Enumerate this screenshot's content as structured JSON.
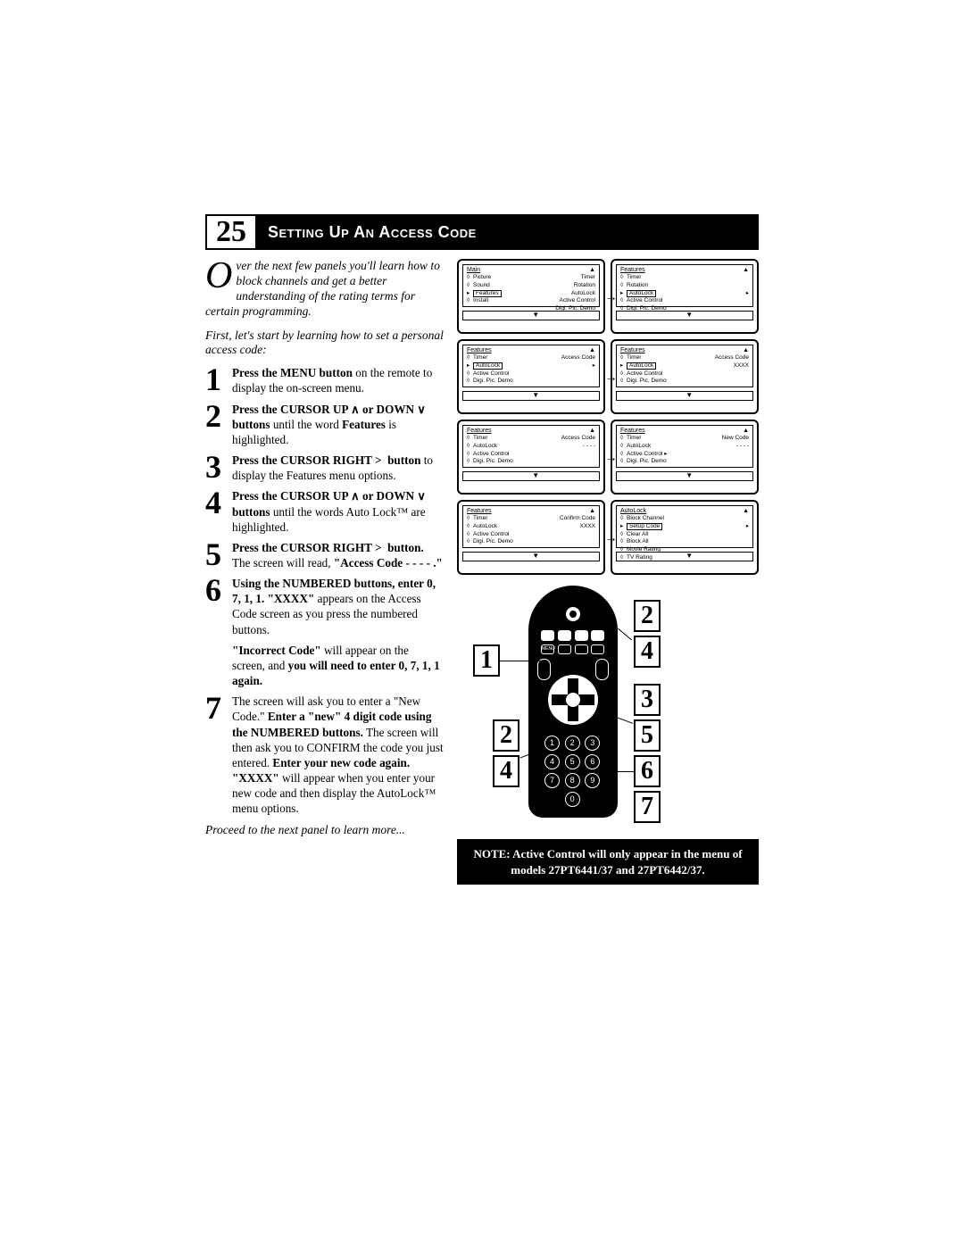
{
  "page_number": "25",
  "title": "Setting Up An Access Code",
  "intro_lead": "O",
  "intro": "ver the next few panels you'll learn how to block channels and get a better understanding of the rating terms for certain programming.",
  "intro2": "First, let's start by learning how to set a personal access code:",
  "steps": [
    {
      "n": "1",
      "html": "<b>Press the MENU button</b> on the remote to display the on-screen menu."
    },
    {
      "n": "2",
      "html": "<b>Press the CURSOR UP ∧ or DOWN ∨ buttons</b> until the word <b>Features</b> is highlighted."
    },
    {
      "n": "3",
      "html": "<b>Press the CURSOR RIGHT > &nbsp;button</b> to display the Features menu options."
    },
    {
      "n": "4",
      "html": "<b>Press the CURSOR UP ∧ or DOWN ∨ buttons</b> until the words Auto Lock™ are highlighted."
    },
    {
      "n": "5",
      "html": "<b>Press the CURSOR RIGHT > &nbsp;button.</b> The screen will read, <b>\"Access Code - - - - .\"</b>"
    },
    {
      "n": "6",
      "html": "<b>Using the NUMBERED buttons, enter 0, 7, 1, 1. \"XXXX\"</b> appears on the Access Code screen as you press the numbered buttons.",
      "more": "<b>\"Incorrect Code\"</b> will appear on the screen, and <b>you will need to enter 0, 7, 1, 1 again.</b>"
    },
    {
      "n": "7",
      "html": "The screen will ask you to enter a \"New Code.\" <b>Enter a \"new\" 4 digit code using the NUMBERED buttons.</b> The screen will then ask you to CONFIRM the code you just entered. <b>Enter your new code again. \"XXXX\"</b> will appear when you enter your new code and then display the AutoLock™ menu options."
    }
  ],
  "outro": "Proceed to the next panel to learn more...",
  "note": "NOTE:  Active Control will only appear in the menu of models 27PT6441/37 and 27PT6442/37.",
  "callouts": [
    "1",
    "2",
    "4",
    "2",
    "4",
    "3",
    "5",
    "6",
    "7"
  ],
  "tv": [
    {
      "title": "Main",
      "items": [
        [
          "◊",
          "Picture",
          "Timer"
        ],
        [
          "◊",
          "Sound",
          "Rotation"
        ],
        [
          "▸",
          "Features",
          "AutoLock",
          "sel"
        ],
        [
          "◊",
          "Install",
          "Active Control"
        ],
        [
          "",
          "",
          "Digi. Pic. Demo"
        ]
      ]
    },
    {
      "title": "Features",
      "items": [
        [
          "◊",
          "Timer",
          ""
        ],
        [
          "◊",
          "Rotation",
          ""
        ],
        [
          "▸",
          "AutoLock",
          "▸",
          "sel"
        ],
        [
          "◊",
          "Active Control",
          ""
        ],
        [
          "◊",
          "Digi. Pic. Demo",
          ""
        ]
      ]
    },
    {
      "title": "Features",
      "items": [
        [
          "◊",
          "Timer",
          "Access Code"
        ],
        [
          "▸",
          "AutoLock",
          "▸",
          "sel"
        ],
        [
          "◊",
          "Active Control",
          ""
        ],
        [
          "◊",
          "Digi. Pic. Demo",
          ""
        ]
      ]
    },
    {
      "title": "Features",
      "items": [
        [
          "◊",
          "Timer",
          "Access Code"
        ],
        [
          "▸",
          "AutoLock",
          "XXXX",
          "sel"
        ],
        [
          "◊",
          "Active Control",
          ""
        ],
        [
          "◊",
          "Digi. Pic. Demo",
          ""
        ]
      ]
    },
    {
      "title": "Features",
      "items": [
        [
          "◊",
          "Timer",
          "Access Code"
        ],
        [
          "◊",
          "AutoLock",
          "- - - -"
        ],
        [
          "◊",
          "Active Control",
          ""
        ],
        [
          "◊",
          "Digi. Pic. Demo",
          ""
        ]
      ]
    },
    {
      "title": "Features",
      "items": [
        [
          "◊",
          "Timer",
          "New Code"
        ],
        [
          "◊",
          "AutoLock",
          "- - - -"
        ],
        [
          "◊",
          "Active Control ▸",
          ""
        ],
        [
          "◊",
          "Digi. Pic. Demo",
          ""
        ]
      ]
    },
    {
      "title": "Features",
      "items": [
        [
          "◊",
          "Timer",
          "Confirm Code"
        ],
        [
          "◊",
          "AutoLock",
          "XXXX"
        ],
        [
          "◊",
          "Active Control",
          ""
        ],
        [
          "◊",
          "Digi. Pic. Demo",
          ""
        ]
      ]
    },
    {
      "title": "AutoLock",
      "items": [
        [
          "◊",
          "Block Channel",
          ""
        ],
        [
          "▸",
          "Setup Code",
          "▸",
          "sel"
        ],
        [
          "◊",
          "Clear All",
          ""
        ],
        [
          "◊",
          "Block All",
          ""
        ],
        [
          "◊",
          "Movie Rating",
          ""
        ],
        [
          "◊",
          "TV Rating",
          ""
        ]
      ]
    }
  ],
  "remote_labels": {
    "menu": "MENU",
    "ok": "OK",
    "vol": "VOL",
    "ch": "CH"
  }
}
